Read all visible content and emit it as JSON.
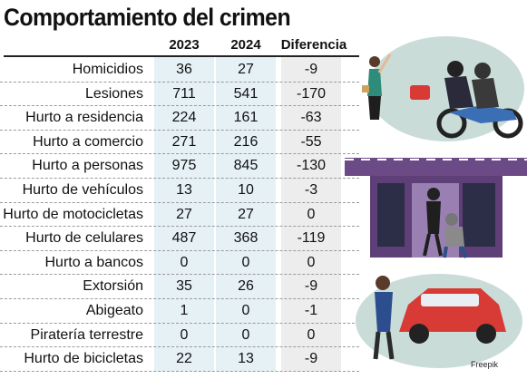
{
  "title": "Comportamiento del crimen",
  "columns": [
    "2023",
    "2024",
    "Diferencia"
  ],
  "rows": [
    {
      "label": "Homicidios",
      "y2023": "36",
      "y2024": "27",
      "diff": "-9"
    },
    {
      "label": "Lesiones",
      "y2023": "711",
      "y2024": "541",
      "diff": "-170"
    },
    {
      "label": "Hurto a residencia",
      "y2023": "224",
      "y2024": "161",
      "diff": "-63"
    },
    {
      "label": "Hurto a comercio",
      "y2023": "271",
      "y2024": "216",
      "diff": "-55"
    },
    {
      "label": "Hurto a personas",
      "y2023": "975",
      "y2024": "845",
      "diff": "-130"
    },
    {
      "label": "Hurto de vehículos",
      "y2023": "13",
      "y2024": "10",
      "diff": "-3"
    },
    {
      "label": "Hurto de motocicletas",
      "y2023": "27",
      "y2024": "27",
      "diff": "0"
    },
    {
      "label": "Hurto de celulares",
      "y2023": "487",
      "y2024": "368",
      "diff": "-119"
    },
    {
      "label": "Hurto a bancos",
      "y2023": "0",
      "y2024": "0",
      "diff": "0"
    },
    {
      "label": "Extorsión",
      "y2023": "35",
      "y2024": "26",
      "diff": "-9"
    },
    {
      "label": "Abigeato",
      "y2023": "1",
      "y2024": "0",
      "diff": "-1"
    },
    {
      "label": "Piratería terrestre",
      "y2023": "0",
      "y2024": "0",
      "diff": "0"
    },
    {
      "label": "Hurto de bicicletas",
      "y2023": "22",
      "y2024": "13",
      "diff": "-9"
    }
  ],
  "credit": "Freepik",
  "colors": {
    "col_2023_bg": "#e6f1f6",
    "col_2024_bg": "#e6f1f6",
    "col_diff_bg": "#ededed",
    "illustration_circle": "#c9dcd8",
    "shop_purple": "#6b4a86",
    "car_red": "#d83a35"
  }
}
